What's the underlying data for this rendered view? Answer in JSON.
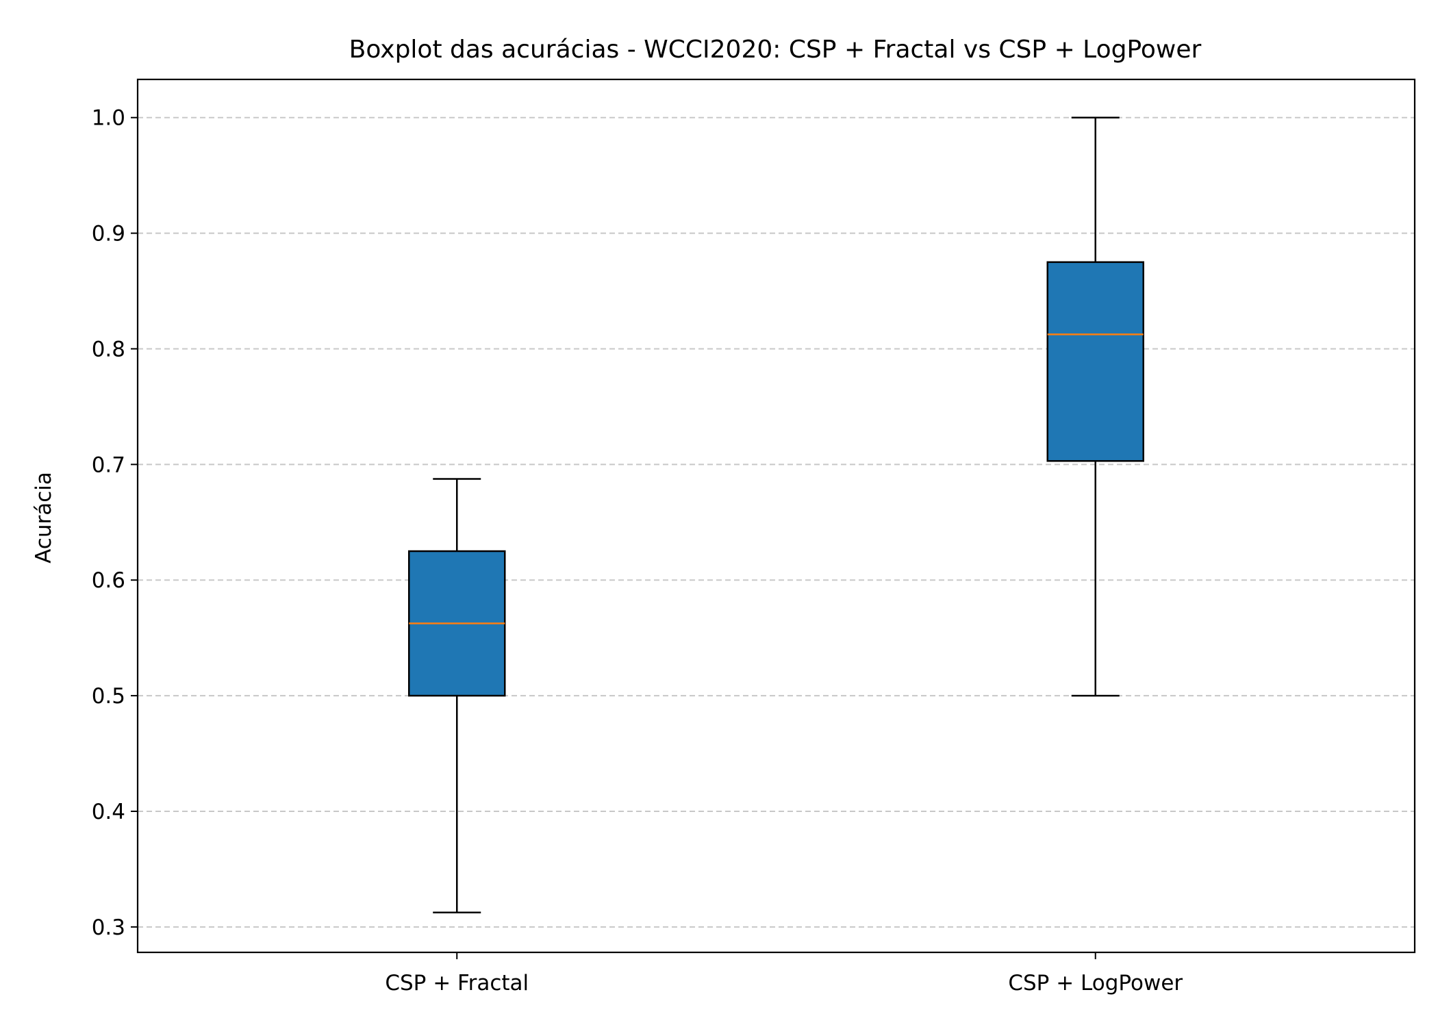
{
  "chart_data": {
    "type": "boxplot",
    "title": "Boxplot das acurácias - WCCI2020: CSP + Fractal vs CSP + LogPower",
    "xlabel": "",
    "ylabel": "Acurácia",
    "ylim": [
      0.278,
      1.033
    ],
    "yticks": [
      "0.3",
      "0.4",
      "0.5",
      "0.6",
      "0.7",
      "0.8",
      "0.9",
      "1.0"
    ],
    "grid": "y-dashed",
    "categories": [
      "CSP + Fractal",
      "CSP + LogPower"
    ],
    "boxes": [
      {
        "category": "CSP + Fractal",
        "whisker_low": 0.3125,
        "q1": 0.5,
        "median": 0.5625,
        "q3": 0.625,
        "whisker_high": 0.6875
      },
      {
        "category": "CSP + LogPower",
        "whisker_low": 0.5,
        "q1": 0.703,
        "median": 0.8125,
        "q3": 0.875,
        "whisker_high": 1.0
      }
    ],
    "colors": {
      "box_fill": "#1f77b4",
      "median": "#ff7f0e",
      "grid": "#c8c8c8",
      "line": "#000000"
    }
  }
}
